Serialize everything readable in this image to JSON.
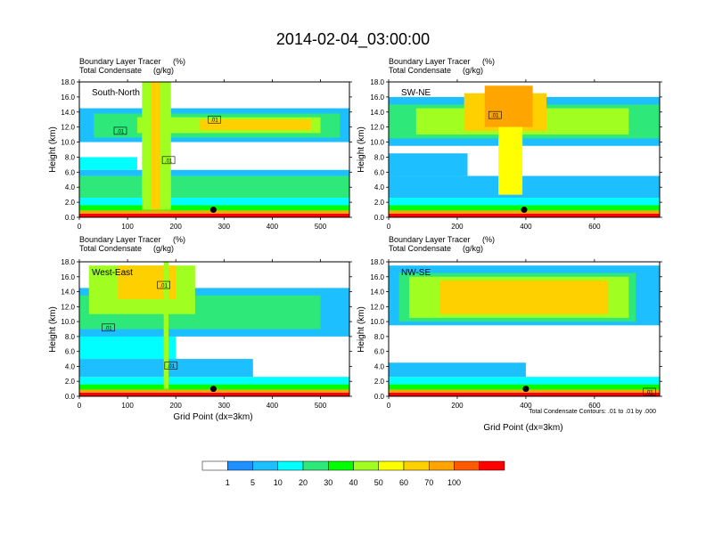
{
  "figure": {
    "title": "2014-02-04_03:00:00",
    "contour_note": "Total Condensate Contours: .01 to .01 by .000",
    "colorbar": {
      "labels": [
        "1",
        "5",
        "10",
        "20",
        "30",
        "40",
        "50",
        "60",
        "70",
        "100"
      ],
      "colors": [
        "#ffffff",
        "#1e90ff",
        "#1ebfff",
        "#00ffff",
        "#2ee87a",
        "#00ff00",
        "#a0ff20",
        "#ffff00",
        "#ffd000",
        "#ffa500",
        "#ff5a00",
        "#ff0000"
      ]
    }
  },
  "chart_data": [
    {
      "type": "heatmap",
      "panel_label": "South-North",
      "title_line1": "Boundary Layer Tracer",
      "title_unit1": "(%)",
      "title_line2": "Total Condensate",
      "title_unit2": "(g/kg)",
      "ylabel": "Height (km)",
      "xlabel": "",
      "xlim": [
        0,
        560
      ],
      "ylim": [
        0,
        18
      ],
      "xticks": [
        {
          "v": 0,
          "label": "0"
        },
        {
          "v": 100,
          "label": "100"
        },
        {
          "v": 200,
          "label": "200"
        },
        {
          "v": 300,
          "label": "300"
        },
        {
          "v": 400,
          "label": "400"
        },
        {
          "v": 500,
          "label": "500"
        }
      ],
      "yticks": [
        {
          "v": 0,
          "label": "0.0"
        },
        {
          "v": 2,
          "label": "2.0"
        },
        {
          "v": 4,
          "label": "4.0"
        },
        {
          "v": 6,
          "label": "6.0"
        },
        {
          "v": 8,
          "label": "8.0"
        },
        {
          "v": 10,
          "label": "10.0"
        },
        {
          "v": 12,
          "label": "12.0"
        },
        {
          "v": 14,
          "label": "14.0"
        },
        {
          "v": 16,
          "label": "16.0"
        },
        {
          "v": 18,
          "label": "18.0"
        }
      ],
      "contour_labels": [
        {
          "x": 85,
          "y": 11.5,
          "text": ".01"
        },
        {
          "x": 280,
          "y": 13.0,
          "text": ".01"
        },
        {
          "x": 185,
          "y": 7.6,
          "text": ".01"
        }
      ],
      "marker": {
        "x": 278,
        "y": 1.0
      },
      "bands": [
        {
          "x0": 0,
          "x1": 560,
          "y0": 0,
          "y1": 0.5,
          "level": 11
        },
        {
          "x0": 0,
          "x1": 560,
          "y0": 0.5,
          "y1": 0.9,
          "level": 9
        },
        {
          "x0": 0,
          "x1": 560,
          "y0": 0.9,
          "y1": 1.6,
          "level": 5
        },
        {
          "x0": 0,
          "x1": 560,
          "y0": 1.6,
          "y1": 2.6,
          "level": 3
        },
        {
          "x0": 0,
          "x1": 560,
          "y0": 2.6,
          "y1": 5.5,
          "level": 4
        },
        {
          "x0": 0,
          "x1": 560,
          "y0": 5.5,
          "y1": 6.3,
          "level": 2
        },
        {
          "x0": 0,
          "x1": 120,
          "y0": 6.3,
          "y1": 8.0,
          "level": 3
        },
        {
          "x0": 0,
          "x1": 560,
          "y0": 10.0,
          "y1": 14.5,
          "level": 2
        },
        {
          "x0": 30,
          "x1": 540,
          "y0": 10.6,
          "y1": 13.8,
          "level": 4
        },
        {
          "x0": 120,
          "x1": 500,
          "y0": 11.2,
          "y1": 13.3,
          "level": 6
        },
        {
          "x0": 250,
          "x1": 480,
          "y0": 11.6,
          "y1": 13.0,
          "level": 8
        },
        {
          "x0": 130,
          "x1": 190,
          "y0": 1.0,
          "y1": 18.0,
          "level": 6
        },
        {
          "x0": 148,
          "x1": 168,
          "y0": 1.0,
          "y1": 18.0,
          "level": 8
        }
      ]
    },
    {
      "type": "heatmap",
      "panel_label": "SW-NE",
      "title_line1": "Boundary Layer Tracer",
      "title_unit1": "(%)",
      "title_line2": "Total Condensate",
      "title_unit2": "(g/kg)",
      "ylabel": "Height (km)",
      "xlabel": "",
      "xlim": [
        0,
        790
      ],
      "ylim": [
        0,
        18
      ],
      "xticks": [
        {
          "v": 0,
          "label": "0"
        },
        {
          "v": 200,
          "label": "200"
        },
        {
          "v": 400,
          "label": "400"
        },
        {
          "v": 600,
          "label": "600"
        }
      ],
      "yticks": [
        {
          "v": 0,
          "label": "0.0"
        },
        {
          "v": 2,
          "label": "2.0"
        },
        {
          "v": 4,
          "label": "4.0"
        },
        {
          "v": 6,
          "label": "6.0"
        },
        {
          "v": 8,
          "label": "8.0"
        },
        {
          "v": 10,
          "label": "10.0"
        },
        {
          "v": 12,
          "label": "12.0"
        },
        {
          "v": 14,
          "label": "14.0"
        },
        {
          "v": 16,
          "label": "16.0"
        },
        {
          "v": 18,
          "label": "18.0"
        }
      ],
      "contour_labels": [
        {
          "x": 310,
          "y": 13.6,
          "text": ".01"
        }
      ],
      "marker": {
        "x": 395,
        "y": 1.0
      },
      "bands": [
        {
          "x0": 0,
          "x1": 790,
          "y0": 0,
          "y1": 0.5,
          "level": 11
        },
        {
          "x0": 0,
          "x1": 790,
          "y0": 0.5,
          "y1": 0.9,
          "level": 9
        },
        {
          "x0": 0,
          "x1": 790,
          "y0": 0.9,
          "y1": 1.6,
          "level": 5
        },
        {
          "x0": 0,
          "x1": 790,
          "y0": 1.6,
          "y1": 2.6,
          "level": 3
        },
        {
          "x0": 0,
          "x1": 790,
          "y0": 2.6,
          "y1": 5.5,
          "level": 2
        },
        {
          "x0": 0,
          "x1": 230,
          "y0": 5.5,
          "y1": 8.5,
          "level": 2
        },
        {
          "x0": 0,
          "x1": 790,
          "y0": 9.5,
          "y1": 16.0,
          "level": 2
        },
        {
          "x0": 0,
          "x1": 790,
          "y0": 10.5,
          "y1": 15.0,
          "level": 4
        },
        {
          "x0": 80,
          "x1": 700,
          "y0": 11.0,
          "y1": 14.5,
          "level": 6
        },
        {
          "x0": 220,
          "x1": 460,
          "y0": 11.5,
          "y1": 16.5,
          "level": 8
        },
        {
          "x0": 280,
          "x1": 420,
          "y0": 12.0,
          "y1": 17.5,
          "level": 9
        },
        {
          "x0": 320,
          "x1": 390,
          "y0": 3.0,
          "y1": 12.0,
          "level": 7
        }
      ]
    },
    {
      "type": "heatmap",
      "panel_label": "West-East",
      "title_line1": "Boundary Layer Tracer",
      "title_unit1": "(%)",
      "title_line2": "Total Condensate",
      "title_unit2": "(g/kg)",
      "ylabel": "Height (km)",
      "xlabel": "Grid Point (dx=3km)",
      "xlim": [
        0,
        560
      ],
      "ylim": [
        0,
        18
      ],
      "xticks": [
        {
          "v": 0,
          "label": "0"
        },
        {
          "v": 100,
          "label": "100"
        },
        {
          "v": 200,
          "label": "200"
        },
        {
          "v": 300,
          "label": "300"
        },
        {
          "v": 400,
          "label": "400"
        },
        {
          "v": 500,
          "label": "500"
        }
      ],
      "yticks": [
        {
          "v": 0,
          "label": "0.0"
        },
        {
          "v": 2,
          "label": "2.0"
        },
        {
          "v": 4,
          "label": "4.0"
        },
        {
          "v": 6,
          "label": "6.0"
        },
        {
          "v": 8,
          "label": "8.0"
        },
        {
          "v": 10,
          "label": "10.0"
        },
        {
          "v": 12,
          "label": "12.0"
        },
        {
          "v": 14,
          "label": "14.0"
        },
        {
          "v": 16,
          "label": "16.0"
        },
        {
          "v": 18,
          "label": "18.0"
        }
      ],
      "contour_labels": [
        {
          "x": 175,
          "y": 14.9,
          "text": ".01"
        },
        {
          "x": 60,
          "y": 9.2,
          "text": ".01"
        },
        {
          "x": 190,
          "y": 4.1,
          "text": ".01"
        }
      ],
      "marker": {
        "x": 278,
        "y": 1.0
      },
      "bands": [
        {
          "x0": 0,
          "x1": 560,
          "y0": 0,
          "y1": 0.5,
          "level": 11
        },
        {
          "x0": 0,
          "x1": 560,
          "y0": 0.5,
          "y1": 0.9,
          "level": 9
        },
        {
          "x0": 0,
          "x1": 560,
          "y0": 0.9,
          "y1": 1.6,
          "level": 5
        },
        {
          "x0": 0,
          "x1": 560,
          "y0": 1.6,
          "y1": 2.6,
          "level": 3
        },
        {
          "x0": 0,
          "x1": 360,
          "y0": 2.6,
          "y1": 5.0,
          "level": 2
        },
        {
          "x0": 0,
          "x1": 200,
          "y0": 5.0,
          "y1": 9.0,
          "level": 3
        },
        {
          "x0": 0,
          "x1": 560,
          "y0": 8.0,
          "y1": 14.5,
          "level": 2
        },
        {
          "x0": 0,
          "x1": 500,
          "y0": 9.0,
          "y1": 13.5,
          "level": 4
        },
        {
          "x0": 20,
          "x1": 240,
          "y0": 11.0,
          "y1": 17.5,
          "level": 6
        },
        {
          "x0": 80,
          "x1": 200,
          "y0": 13.0,
          "y1": 17.5,
          "level": 8
        },
        {
          "x0": 175,
          "x1": 185,
          "y0": 1.0,
          "y1": 18.0,
          "level": 6
        }
      ]
    },
    {
      "type": "heatmap",
      "panel_label": "NW-SE",
      "title_line1": "Boundary Layer Tracer",
      "title_unit1": "(%)",
      "title_line2": "Total Condensate",
      "title_unit2": "(g/kg)",
      "ylabel": "Height (km)",
      "xlabel": "Grid Point (dx=3km)",
      "xlim": [
        0,
        790
      ],
      "ylim": [
        0,
        18
      ],
      "xticks": [
        {
          "v": 0,
          "label": "0"
        },
        {
          "v": 200,
          "label": "200"
        },
        {
          "v": 400,
          "label": "400"
        },
        {
          "v": 600,
          "label": "600"
        }
      ],
      "yticks": [
        {
          "v": 0,
          "label": "0.0"
        },
        {
          "v": 2,
          "label": "2.0"
        },
        {
          "v": 4,
          "label": "4.0"
        },
        {
          "v": 6,
          "label": "6.0"
        },
        {
          "v": 8,
          "label": "8.0"
        },
        {
          "v": 10,
          "label": "10.0"
        },
        {
          "v": 12,
          "label": "12.0"
        },
        {
          "v": 14,
          "label": "14.0"
        },
        {
          "v": 16,
          "label": "16.0"
        },
        {
          "v": 18,
          "label": "18.0"
        }
      ],
      "contour_labels": [
        {
          "x": 760,
          "y": 0.6,
          "text": ".01"
        }
      ],
      "marker": {
        "x": 400,
        "y": 1.0
      },
      "bands": [
        {
          "x0": 0,
          "x1": 790,
          "y0": 0,
          "y1": 0.5,
          "level": 11
        },
        {
          "x0": 0,
          "x1": 790,
          "y0": 0.5,
          "y1": 0.9,
          "level": 9
        },
        {
          "x0": 0,
          "x1": 790,
          "y0": 0.9,
          "y1": 1.6,
          "level": 5
        },
        {
          "x0": 0,
          "x1": 790,
          "y0": 1.6,
          "y1": 2.6,
          "level": 3
        },
        {
          "x0": 0,
          "x1": 400,
          "y0": 2.6,
          "y1": 4.5,
          "level": 2
        },
        {
          "x0": 0,
          "x1": 790,
          "y0": 9.5,
          "y1": 17.5,
          "level": 2
        },
        {
          "x0": 30,
          "x1": 720,
          "y0": 10.0,
          "y1": 16.5,
          "level": 4
        },
        {
          "x0": 60,
          "x1": 700,
          "y0": 10.5,
          "y1": 16.0,
          "level": 6
        },
        {
          "x0": 150,
          "x1": 640,
          "y0": 11.0,
          "y1": 15.5,
          "level": 8
        }
      ]
    }
  ]
}
